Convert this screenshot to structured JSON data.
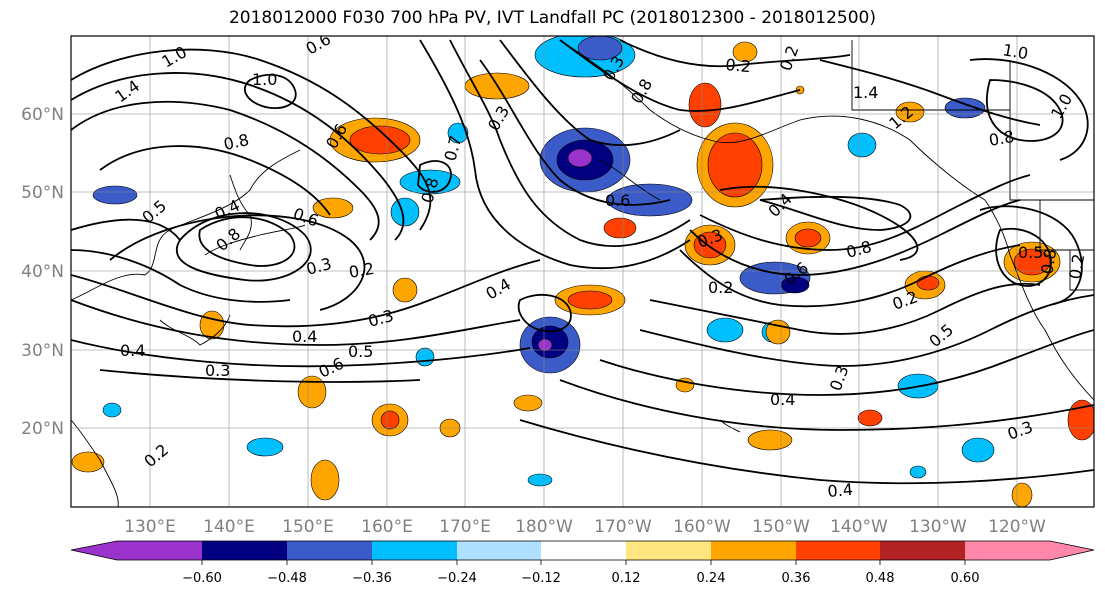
{
  "title": "2018012000 F030 700 hPa PV, IVT Landfall PC (2018012300 - 2018012500)",
  "lon_ticks": [
    "130°E",
    "140°E",
    "150°E",
    "160°E",
    "170°E",
    "180°W",
    "170°W",
    "160°W",
    "150°W",
    "140°W",
    "130°W",
    "120°W"
  ],
  "lat_ticks": [
    "60°N",
    "50°N",
    "40°N",
    "30°N",
    "20°N"
  ],
  "colorbar": {
    "labels": [
      "−0.60",
      "−0.48",
      "−0.36",
      "−0.24",
      "−0.12",
      "0.12",
      "0.24",
      "0.36",
      "0.48",
      "0.60"
    ],
    "colors": [
      "#9933cc",
      "#000080",
      "#3a5bc8",
      "#00bfff",
      "#b0e0ff",
      "#ffffff",
      "#ffe680",
      "#ffa500",
      "#ff4000",
      "#b22222",
      "#ff88aa"
    ]
  },
  "contour_labels": [
    "1.4",
    "1.0",
    "0.6",
    "0.8",
    "1.0",
    "0.6",
    "0.3",
    "0.7",
    "0.8",
    "0.5",
    "0.4",
    "0.8",
    "0.6",
    "0.3",
    "0.2",
    "0.4",
    "0.3",
    "0.4",
    "0.5",
    "0.6",
    "0.3",
    "0.4",
    "0.2",
    "0.6",
    "0.3",
    "0.6",
    "0.4",
    "0.8",
    "0.2",
    "0.5",
    "0.3",
    "0.2",
    "0.4",
    "0.3",
    "0.4",
    "0.2",
    "0.2",
    "1.4",
    "1.2",
    "1.0",
    "0.8",
    "1.0",
    "0.5",
    "0.8",
    "0.2",
    "0.3",
    "0.8"
  ]
}
